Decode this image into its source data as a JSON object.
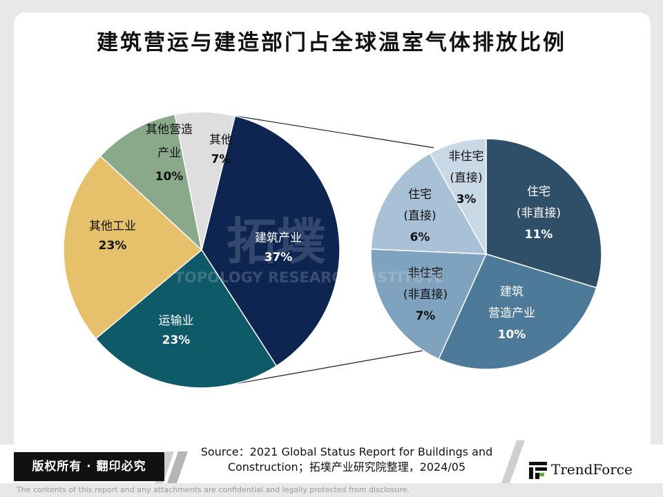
{
  "title": "建筑营运与建造部门占全球温室气体排放比例",
  "chart_data": [
    {
      "type": "pie",
      "slices": [
        {
          "label": "建筑产业",
          "value": 37,
          "value_text": "37%",
          "color": "#0d2550",
          "text_color": "#ffffff"
        },
        {
          "label": "运输业",
          "value": 23,
          "value_text": "23%",
          "color": "#0f5a68",
          "text_color": "#ffffff"
        },
        {
          "label": "其他工业",
          "value": 23,
          "value_text": "23%",
          "color": "#e6c06a",
          "text_color": "#111111"
        },
        {
          "label": "其他营造产业",
          "value": 10,
          "value_text": "10%",
          "color": "#8aa98a",
          "text_color": "#111111"
        },
        {
          "label": "其他",
          "value": 7,
          "value_text": "7%",
          "color": "#dedede",
          "text_color": "#111111"
        }
      ]
    },
    {
      "type": "pie",
      "slices": [
        {
          "label": "住宅(非直接)",
          "value": 11,
          "value_text": "11%",
          "color": "#2f4f69",
          "text_color": "#ffffff"
        },
        {
          "label": "建筑营造产业",
          "value": 10,
          "value_text": "10%",
          "color": "#4e7a99",
          "text_color": "#ffffff"
        },
        {
          "label": "非住宅(非直接)",
          "value": 7,
          "value_text": "7%",
          "color": "#7fa3bf",
          "text_color": "#111111"
        },
        {
          "label": "住宅(直接)",
          "value": 6,
          "value_text": "6%",
          "color": "#a9c1d6",
          "text_color": "#111111"
        },
        {
          "label": "非住宅(直接)",
          "value": 3,
          "value_text": "3%",
          "color": "#c9d8e5",
          "text_color": "#111111"
        }
      ]
    }
  ],
  "watermark": {
    "brand": "拓墣",
    "text": "TOPOLOGY RESEARCH INSTITUTE"
  },
  "footer": {
    "copyright": "版权所有 · 翻印必究",
    "source_line1": "Source：2021 Global Status Report for Buildings and",
    "source_line2": "Construction；拓墣产业研究院整理，2024/05",
    "logo_text": "TrendForce",
    "disclaimer": "The contents of this report and any attachments are confidential and legally protected from disclosure."
  }
}
